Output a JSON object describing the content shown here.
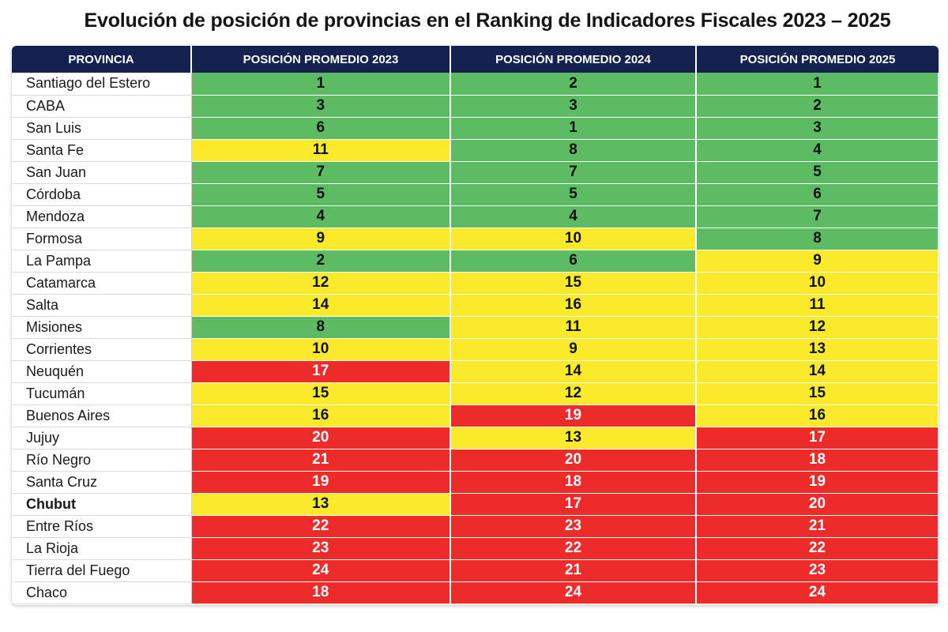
{
  "title": "Evolución de posición de provincias en el Ranking de Indicadores Fiscales 2023 – 2025",
  "colors": {
    "header": "#152250",
    "green": "#5dbb63",
    "yellow": "#fbea2c",
    "red": "#ee2b2b"
  },
  "chart_data": {
    "type": "table",
    "title": "Evolución de posición de provincias en el Ranking de Indicadores Fiscales 2023 – 2025",
    "columns": [
      "PROVINCIA",
      "POSICIÓN PROMEDIO 2023",
      "POSICIÓN PROMEDIO 2024",
      "POSICIÓN PROMEDIO 2025"
    ],
    "rows": [
      {
        "provincia": "Santiago del Estero",
        "y2023": 1,
        "y2024": 2,
        "y2025": 1
      },
      {
        "provincia": "CABA",
        "y2023": 3,
        "y2024": 3,
        "y2025": 2
      },
      {
        "provincia": "San Luis",
        "y2023": 6,
        "y2024": 1,
        "y2025": 3
      },
      {
        "provincia": "Santa Fe",
        "y2023": 11,
        "y2024": 8,
        "y2025": 4
      },
      {
        "provincia": "San Juan",
        "y2023": 7,
        "y2024": 7,
        "y2025": 5
      },
      {
        "provincia": "Córdoba",
        "y2023": 5,
        "y2024": 5,
        "y2025": 6
      },
      {
        "provincia": "Mendoza",
        "y2023": 4,
        "y2024": 4,
        "y2025": 7
      },
      {
        "provincia": "Formosa",
        "y2023": 9,
        "y2024": 10,
        "y2025": 8
      },
      {
        "provincia": "La Pampa",
        "y2023": 2,
        "y2024": 6,
        "y2025": 9
      },
      {
        "provincia": "Catamarca",
        "y2023": 12,
        "y2024": 15,
        "y2025": 10
      },
      {
        "provincia": "Salta",
        "y2023": 14,
        "y2024": 16,
        "y2025": 11
      },
      {
        "provincia": "Misiones",
        "y2023": 8,
        "y2024": 11,
        "y2025": 12
      },
      {
        "provincia": "Corrientes",
        "y2023": 10,
        "y2024": 9,
        "y2025": 13
      },
      {
        "provincia": "Neuquén",
        "y2023": 17,
        "y2024": 14,
        "y2025": 14
      },
      {
        "provincia": "Tucumán",
        "y2023": 15,
        "y2024": 12,
        "y2025": 15
      },
      {
        "provincia": "Buenos Aires",
        "y2023": 16,
        "y2024": 19,
        "y2025": 16
      },
      {
        "provincia": "Jujuy",
        "y2023": 20,
        "y2024": 13,
        "y2025": 17
      },
      {
        "provincia": "Río Negro",
        "y2023": 21,
        "y2024": 20,
        "y2025": 18
      },
      {
        "provincia": "Santa Cruz",
        "y2023": 19,
        "y2024": 18,
        "y2025": 19
      },
      {
        "provincia": "Chubut",
        "y2023": 13,
        "y2024": 17,
        "y2025": 20,
        "bold": true
      },
      {
        "provincia": "Entre Ríos",
        "y2023": 22,
        "y2024": 23,
        "y2025": 21
      },
      {
        "provincia": "La Rioja",
        "y2023": 23,
        "y2024": 22,
        "y2025": 22
      },
      {
        "provincia": "Tierra del Fuego",
        "y2023": 24,
        "y2024": 21,
        "y2025": 23
      },
      {
        "provincia": "Chaco",
        "y2023": 18,
        "y2024": 24,
        "y2025": 24
      }
    ],
    "color_scale": {
      "green_max": 8,
      "yellow_max": 16,
      "red_max": 24
    }
  }
}
